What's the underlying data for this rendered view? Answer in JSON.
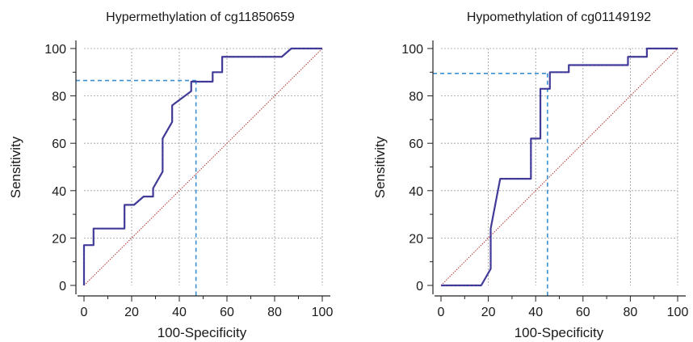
{
  "chart_data": [
    {
      "type": "line",
      "title": "Hypermethylation of cg11850659",
      "xlabel": "100-Specificity",
      "ylabel": "Sensitivity",
      "xlim": [
        0,
        100
      ],
      "ylim": [
        0,
        100
      ],
      "xticks": [
        "0",
        "20",
        "40",
        "60",
        "80",
        "100"
      ],
      "yticks": [
        "0",
        "20",
        "40",
        "60",
        "80",
        "100"
      ],
      "grid": true,
      "series": [
        {
          "role": "roc-curve",
          "color": "#3a3a9a",
          "points": [
            [
              0,
              0
            ],
            [
              0,
              17
            ],
            [
              4,
              17
            ],
            [
              4,
              24
            ],
            [
              17,
              24
            ],
            [
              17,
              34
            ],
            [
              21,
              34
            ],
            [
              25,
              37.5
            ],
            [
              29,
              37.5
            ],
            [
              29,
              41
            ],
            [
              33,
              48
            ],
            [
              33,
              62
            ],
            [
              37,
              69
            ],
            [
              37,
              76
            ],
            [
              45,
              82
            ],
            [
              45,
              86
            ],
            [
              54,
              86
            ],
            [
              54,
              90
            ],
            [
              58,
              90
            ],
            [
              58,
              96.5
            ],
            [
              83,
              96.5
            ],
            [
              87,
              100
            ],
            [
              100,
              100
            ]
          ]
        },
        {
          "role": "reference-diagonal",
          "color": "#b03030",
          "points": [
            [
              0,
              0
            ],
            [
              100,
              100
            ]
          ]
        }
      ],
      "optimal_point": {
        "x": 47,
        "y": 86.5,
        "color": "#3a8fd0"
      }
    },
    {
      "type": "line",
      "title": "Hypomethylation of cg01149192",
      "xlabel": "100-Specificity",
      "ylabel": "Sensitivity",
      "xlim": [
        0,
        100
      ],
      "ylim": [
        0,
        100
      ],
      "xticks": [
        "0",
        "20",
        "40",
        "60",
        "80",
        "100"
      ],
      "yticks": [
        "0",
        "20",
        "40",
        "60",
        "80",
        "100"
      ],
      "grid": true,
      "series": [
        {
          "role": "roc-curve",
          "color": "#3a3a9a",
          "points": [
            [
              0,
              0
            ],
            [
              17,
              0
            ],
            [
              21,
              7
            ],
            [
              21,
              24
            ],
            [
              25,
              45
            ],
            [
              38,
              45
            ],
            [
              38,
              62
            ],
            [
              42,
              62
            ],
            [
              42,
              83
            ],
            [
              46,
              83
            ],
            [
              46,
              90
            ],
            [
              54,
              90
            ],
            [
              54,
              93
            ],
            [
              79,
              93
            ],
            [
              79,
              96.5
            ],
            [
              87,
              96.5
            ],
            [
              87,
              100
            ],
            [
              100,
              100
            ]
          ]
        },
        {
          "role": "reference-diagonal",
          "color": "#b03030",
          "points": [
            [
              0,
              0
            ],
            [
              100,
              100
            ]
          ]
        }
      ],
      "optimal_point": {
        "x": 45,
        "y": 89.5,
        "color": "#3a8fd0"
      }
    }
  ]
}
